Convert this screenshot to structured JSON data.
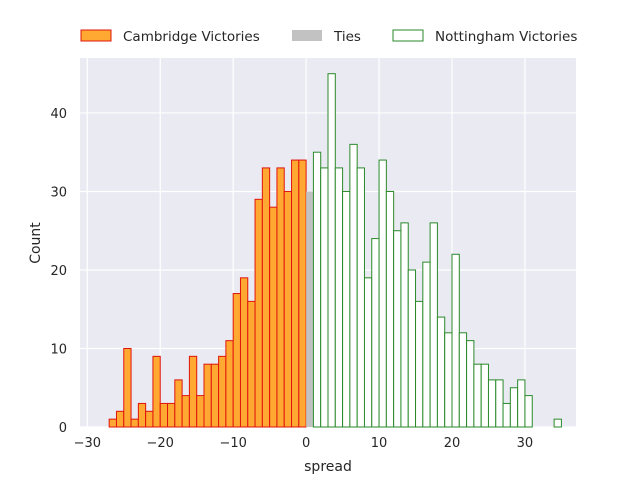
{
  "chart_data": {
    "type": "bar",
    "subtype": "histogram",
    "title": "",
    "xlabel": "spread",
    "ylabel": "Count",
    "xlim": [
      -31,
      37
    ],
    "ylim": [
      0,
      47
    ],
    "xticks": [
      -30,
      -20,
      -10,
      0,
      10,
      20,
      30
    ],
    "xtick_labels": [
      "−30",
      "−20",
      "−10",
      "0",
      "10",
      "20",
      "30"
    ],
    "yticks": [
      0,
      10,
      20,
      30,
      40
    ],
    "ytick_labels": [
      "0",
      "10",
      "20",
      "30",
      "40"
    ],
    "grid": true,
    "legend_position": "top, above plot",
    "series": [
      {
        "name": "Cambridge Victories",
        "fill": "#ffa832",
        "edge": "#e0150d",
        "bins": [
          {
            "x": -27,
            "y": 1
          },
          {
            "x": -26,
            "y": 2
          },
          {
            "x": -25,
            "y": 10
          },
          {
            "x": -24,
            "y": 1
          },
          {
            "x": -23,
            "y": 3
          },
          {
            "x": -22,
            "y": 2
          },
          {
            "x": -21,
            "y": 9
          },
          {
            "x": -20,
            "y": 3
          },
          {
            "x": -19,
            "y": 3
          },
          {
            "x": -18,
            "y": 6
          },
          {
            "x": -17,
            "y": 4
          },
          {
            "x": -16,
            "y": 9
          },
          {
            "x": -15,
            "y": 4
          },
          {
            "x": -14,
            "y": 8
          },
          {
            "x": -13,
            "y": 8
          },
          {
            "x": -12,
            "y": 9
          },
          {
            "x": -11,
            "y": 11
          },
          {
            "x": -10,
            "y": 17
          },
          {
            "x": -9,
            "y": 19
          },
          {
            "x": -8,
            "y": 16
          },
          {
            "x": -7,
            "y": 29
          },
          {
            "x": -6,
            "y": 33
          },
          {
            "x": -5,
            "y": 28
          },
          {
            "x": -4,
            "y": 33
          },
          {
            "x": -3,
            "y": 30
          },
          {
            "x": -2,
            "y": 34
          },
          {
            "x": -1,
            "y": 34
          }
        ]
      },
      {
        "name": "Ties",
        "fill": "#c2c2c2",
        "edge": "none",
        "bins": [
          {
            "x": 0,
            "y": 30
          }
        ]
      },
      {
        "name": "Nottingham Victories",
        "fill": "#ffffff",
        "edge": "#2a8a2a",
        "bins": [
          {
            "x": 1,
            "y": 35
          },
          {
            "x": 2,
            "y": 33
          },
          {
            "x": 3,
            "y": 45
          },
          {
            "x": 4,
            "y": 33
          },
          {
            "x": 5,
            "y": 30
          },
          {
            "x": 6,
            "y": 36
          },
          {
            "x": 7,
            "y": 33
          },
          {
            "x": 8,
            "y": 19
          },
          {
            "x": 9,
            "y": 24
          },
          {
            "x": 10,
            "y": 34
          },
          {
            "x": 11,
            "y": 30
          },
          {
            "x": 12,
            "y": 25
          },
          {
            "x": 13,
            "y": 26
          },
          {
            "x": 14,
            "y": 20
          },
          {
            "x": 15,
            "y": 16
          },
          {
            "x": 16,
            "y": 21
          },
          {
            "x": 17,
            "y": 26
          },
          {
            "x": 18,
            "y": 14
          },
          {
            "x": 19,
            "y": 12
          },
          {
            "x": 20,
            "y": 22
          },
          {
            "x": 21,
            "y": 12
          },
          {
            "x": 22,
            "y": 11
          },
          {
            "x": 23,
            "y": 8
          },
          {
            "x": 24,
            "y": 8
          },
          {
            "x": 25,
            "y": 6
          },
          {
            "x": 26,
            "y": 6
          },
          {
            "x": 27,
            "y": 3
          },
          {
            "x": 28,
            "y": 5
          },
          {
            "x": 29,
            "y": 6
          },
          {
            "x": 30,
            "y": 4
          },
          {
            "x": 34,
            "y": 1
          }
        ]
      }
    ]
  },
  "colors": {
    "plot_background": "#eaeaf2",
    "grid": "#ffffff",
    "text": "#262626"
  }
}
